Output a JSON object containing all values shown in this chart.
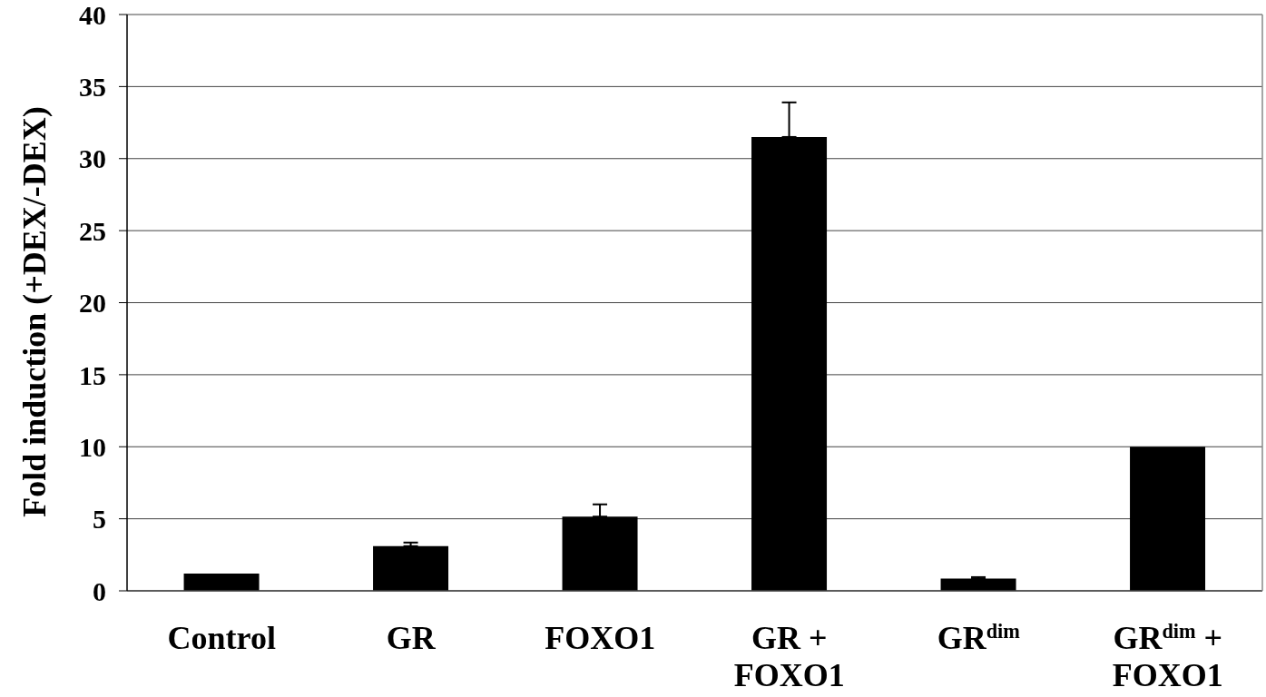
{
  "chart_data": {
    "type": "bar",
    "ylabel": "Fold induction (+DEX/-DEX)",
    "categories": [
      "Control",
      "GR",
      "FOXO1",
      "GR + FOXO1",
      "GR$^{dim}$",
      "GR$^{dim}$ + FOXO1"
    ],
    "values": [
      1.2,
      3.1,
      5.15,
      31.5,
      0.85,
      10.0
    ],
    "errors": [
      null,
      [
        3.1,
        3.35
      ],
      [
        5.15,
        6.0
      ],
      [
        31.5,
        33.9
      ],
      [
        0.85,
        0.95
      ],
      null
    ],
    "color": "#000000",
    "ylim": [
      0,
      40
    ],
    "yticks": [
      0,
      5,
      10,
      15,
      20,
      25,
      30,
      35,
      40
    ],
    "grid": "y"
  }
}
